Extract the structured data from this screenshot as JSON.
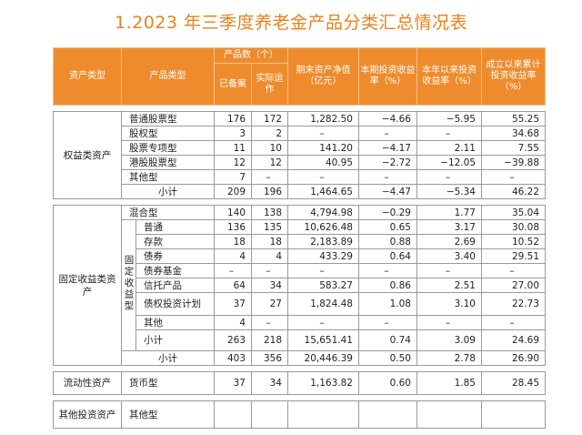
{
  "title": "1.2023 年三季度养老金产品分类汇总情况表",
  "header": {
    "asset_type": "资产类型",
    "product_type": "产品类型",
    "count": "产品数（个）",
    "filed": "已备案",
    "operating": "实际运作",
    "nav": "期末资产净值（亿元）",
    "period_return": "本期投资收益率（%）",
    "ytd_return": "本年以来投资收益率（%）",
    "since_return": "成立以来累计投资收益率（%）"
  },
  "equity": {
    "category": "权益类资产",
    "rows": [
      {
        "name": "普通股票型",
        "filed": "176",
        "operating": "172",
        "nav": "1,282.50",
        "period": "−4.66",
        "ytd": "−5.95",
        "since": "55.25"
      },
      {
        "name": "股权型",
        "filed": "3",
        "operating": "2",
        "nav": "–",
        "period": "–",
        "ytd": "–",
        "since": "34.68"
      },
      {
        "name": "股票专项型",
        "filed": "11",
        "operating": "10",
        "nav": "141.20",
        "period": "−4.17",
        "ytd": "2.11",
        "since": "7.55"
      },
      {
        "name": "港股股票型",
        "filed": "12",
        "operating": "12",
        "nav": "40.95",
        "period": "−2.72",
        "ytd": "−12.05",
        "since": "−39.88"
      },
      {
        "name": "其他型",
        "filed": "7",
        "operating": "–",
        "nav": "–",
        "period": "–",
        "ytd": "–",
        "since": "–"
      },
      {
        "name": "小计",
        "filed": "209",
        "operating": "196",
        "nav": "1,464.65",
        "period": "−4.47",
        "ytd": "−5.34",
        "since": "46.22"
      }
    ]
  },
  "fixed": {
    "category": "固定收益类资产",
    "mixed": {
      "name": "混合型",
      "filed": "140",
      "operating": "138",
      "nav": "4,794.98",
      "period": "−0.29",
      "ytd": "1.77",
      "since": "35.04"
    },
    "sub_category": "固定收益型",
    "rows": [
      {
        "name": "普通",
        "filed": "136",
        "operating": "135",
        "nav": "10,626.48",
        "period": "0.65",
        "ytd": "3.17",
        "since": "30.08"
      },
      {
        "name": "存款",
        "filed": "18",
        "operating": "18",
        "nav": "2,183.89",
        "period": "0.88",
        "ytd": "2.69",
        "since": "10.52"
      },
      {
        "name": "债券",
        "filed": "4",
        "operating": "4",
        "nav": "433.29",
        "period": "0.64",
        "ytd": "3.40",
        "since": "29.51"
      },
      {
        "name": "债券基金",
        "filed": "–",
        "operating": "–",
        "nav": "–",
        "period": "–",
        "ytd": "–",
        "since": "–"
      },
      {
        "name": "信托产品",
        "filed": "64",
        "operating": "34",
        "nav": "583.27",
        "period": "0.86",
        "ytd": "2.51",
        "since": "27.00"
      },
      {
        "name": "债权投资计划",
        "filed": "37",
        "operating": "27",
        "nav": "1,824.48",
        "period": "1.08",
        "ytd": "3.10",
        "since": "22.73"
      },
      {
        "name": "其他",
        "filed": "4",
        "operating": "–",
        "nav": "–",
        "period": "–",
        "ytd": "–",
        "since": "–"
      },
      {
        "name": "小计",
        "filed": "263",
        "operating": "218",
        "nav": "15,651.41",
        "period": "0.74",
        "ytd": "3.09",
        "since": "24.69"
      }
    ],
    "subtotal": {
      "name": "小计",
      "filed": "403",
      "operating": "356",
      "nav": "20,446.39",
      "period": "0.50",
      "ytd": "2.78",
      "since": "26.90"
    }
  },
  "liquidity": {
    "category": "流动性资产",
    "row": {
      "name": "货币型",
      "filed": "37",
      "operating": "34",
      "nav": "1,163.82",
      "period": "0.60",
      "ytd": "1.85",
      "since": "28.45"
    }
  },
  "other": {
    "category": "其他投资资产",
    "row": {
      "name": "其他型",
      "filed": "",
      "operating": "",
      "nav": "",
      "period": "",
      "ytd": "",
      "since": ""
    }
  }
}
